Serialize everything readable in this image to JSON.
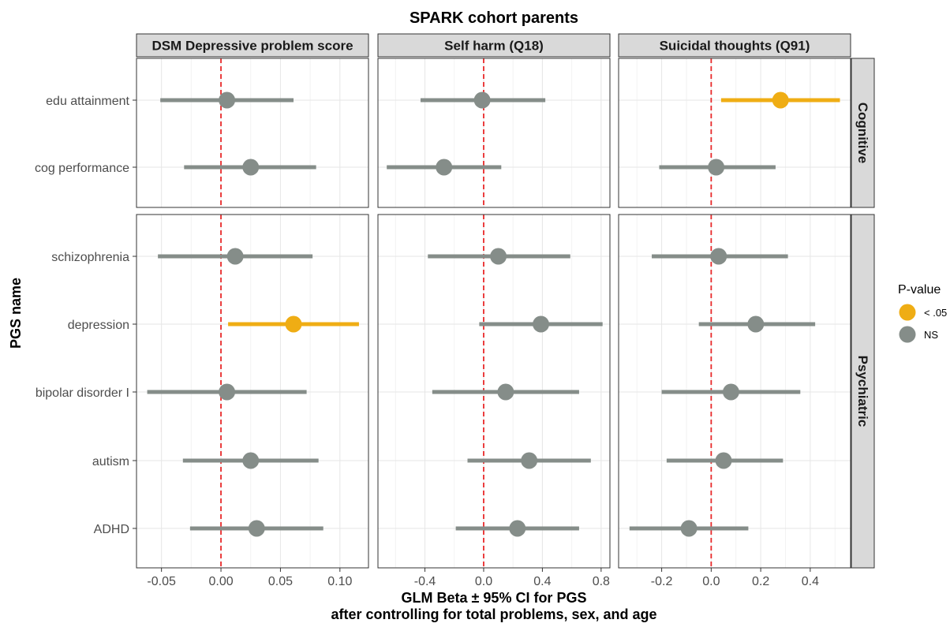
{
  "chart_data": {
    "type": "forest",
    "title": "SPARK cohort parents",
    "xlabel": "GLM Beta ± 95% CI for PGS",
    "xlabel_line2": "after controlling for total problems, sex, and age",
    "ylabel": "PGS name",
    "grid": true,
    "reference_line": 0,
    "legend": {
      "title": "P-value",
      "position": "right",
      "items": [
        {
          "label": "< .05",
          "color": "#EFAD14"
        },
        {
          "label": "NS",
          "color": "#858D89"
        }
      ]
    },
    "row_facets": [
      {
        "label": "Cognitive",
        "rows": [
          "edu attainment",
          "cog performance"
        ]
      },
      {
        "label": "Psychiatric",
        "rows": [
          "schizophrenia",
          "depression",
          "bipolar disorder I",
          "autism",
          "ADHD"
        ]
      }
    ],
    "col_facets": [
      {
        "label": "DSM Depressive problem score",
        "xlim": [
          -0.071,
          0.124
        ],
        "xticks": [
          -0.05,
          0,
          0.05,
          0.1
        ],
        "xtick_labels": [
          "-0.05",
          "0.00",
          "0.05",
          "0.10"
        ],
        "points": [
          {
            "name": "edu attainment",
            "beta": 0.005,
            "lo": -0.051,
            "hi": 0.061,
            "sig": "NS"
          },
          {
            "name": "cog performance",
            "beta": 0.025,
            "lo": -0.031,
            "hi": 0.08,
            "sig": "NS"
          },
          {
            "name": "schizophrenia",
            "beta": 0.012,
            "lo": -0.053,
            "hi": 0.077,
            "sig": "NS"
          },
          {
            "name": "depression",
            "beta": 0.061,
            "lo": 0.006,
            "hi": 0.116,
            "sig": "< .05"
          },
          {
            "name": "bipolar disorder I",
            "beta": 0.005,
            "lo": -0.062,
            "hi": 0.072,
            "sig": "NS"
          },
          {
            "name": "autism",
            "beta": 0.025,
            "lo": -0.032,
            "hi": 0.082,
            "sig": "NS"
          },
          {
            "name": "ADHD",
            "beta": 0.03,
            "lo": -0.026,
            "hi": 0.086,
            "sig": "NS"
          }
        ]
      },
      {
        "label": "Self harm (Q18)",
        "xlim": [
          -0.72,
          0.86
        ],
        "xticks": [
          -0.4,
          0,
          0.4,
          0.8
        ],
        "xtick_labels": [
          "-0.4",
          "0.0",
          "0.4",
          "0.8"
        ],
        "points": [
          {
            "name": "edu attainment",
            "beta": -0.01,
            "lo": -0.43,
            "hi": 0.42,
            "sig": "NS"
          },
          {
            "name": "cog performance",
            "beta": -0.27,
            "lo": -0.66,
            "hi": 0.12,
            "sig": "NS"
          },
          {
            "name": "schizophrenia",
            "beta": 0.1,
            "lo": -0.38,
            "hi": 0.59,
            "sig": "NS"
          },
          {
            "name": "depression",
            "beta": 0.39,
            "lo": -0.03,
            "hi": 0.81,
            "sig": "NS"
          },
          {
            "name": "bipolar disorder I",
            "beta": 0.15,
            "lo": -0.35,
            "hi": 0.65,
            "sig": "NS"
          },
          {
            "name": "autism",
            "beta": 0.31,
            "lo": -0.11,
            "hi": 0.73,
            "sig": "NS"
          },
          {
            "name": "ADHD",
            "beta": 0.23,
            "lo": -0.19,
            "hi": 0.65,
            "sig": "NS"
          }
        ]
      },
      {
        "label": "Suicidal thoughts (Q91)",
        "xlim": [
          -0.374,
          0.563
        ],
        "xticks": [
          -0.2,
          0,
          0.2,
          0.4
        ],
        "xtick_labels": [
          "-0.2",
          "0.0",
          "0.2",
          "0.4"
        ],
        "points": [
          {
            "name": "edu attainment",
            "beta": 0.28,
            "lo": 0.04,
            "hi": 0.52,
            "sig": "< .05"
          },
          {
            "name": "cog performance",
            "beta": 0.02,
            "lo": -0.21,
            "hi": 0.26,
            "sig": "NS"
          },
          {
            "name": "schizophrenia",
            "beta": 0.03,
            "lo": -0.24,
            "hi": 0.31,
            "sig": "NS"
          },
          {
            "name": "depression",
            "beta": 0.18,
            "lo": -0.05,
            "hi": 0.42,
            "sig": "NS"
          },
          {
            "name": "bipolar disorder I",
            "beta": 0.08,
            "lo": -0.2,
            "hi": 0.36,
            "sig": "NS"
          },
          {
            "name": "autism",
            "beta": 0.05,
            "lo": -0.18,
            "hi": 0.29,
            "sig": "NS"
          },
          {
            "name": "ADHD",
            "beta": -0.09,
            "lo": -0.33,
            "hi": 0.15,
            "sig": "NS"
          }
        ]
      }
    ]
  }
}
